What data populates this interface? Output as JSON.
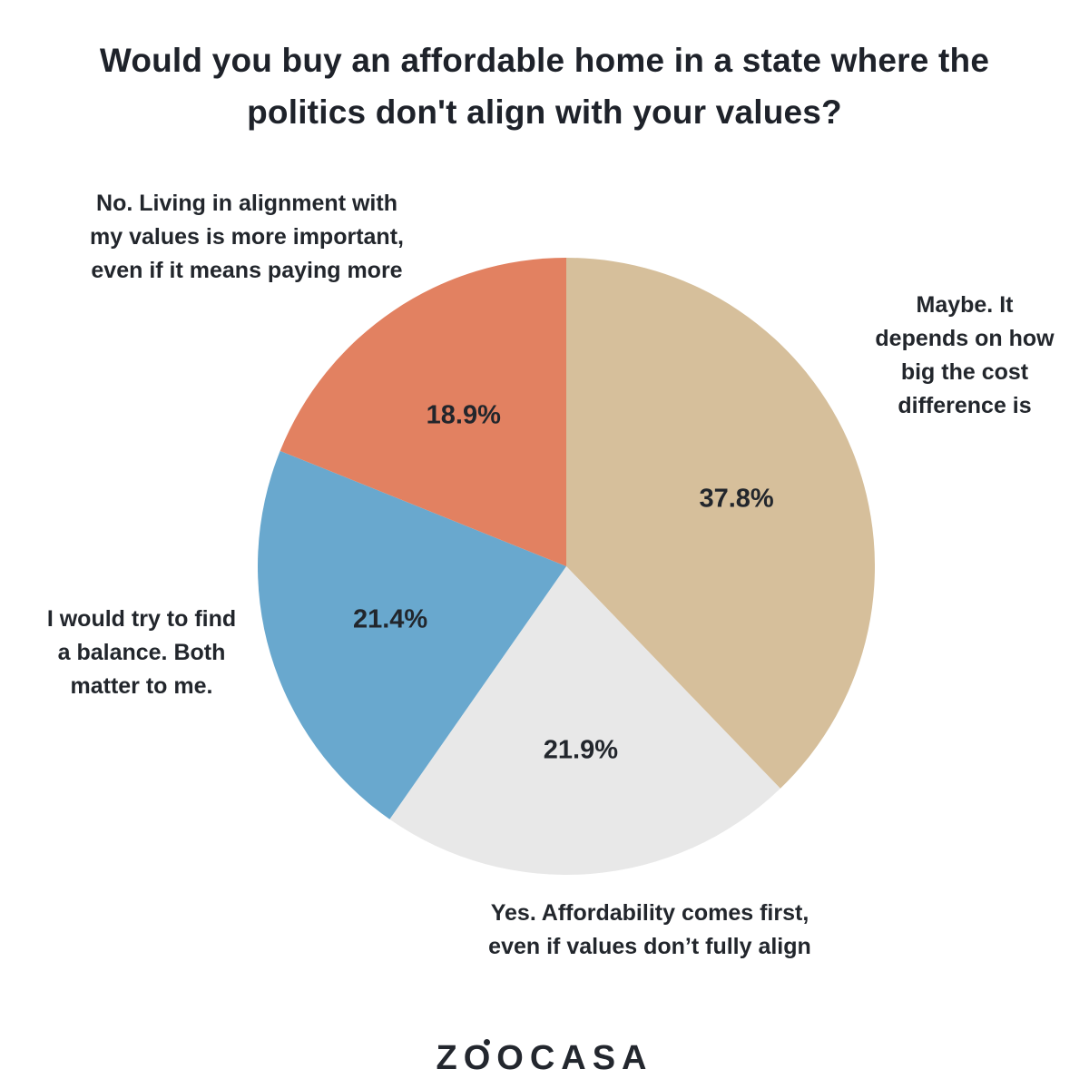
{
  "page": {
    "background": "#FFFFFF",
    "text_color": "#22262C",
    "title_color": "#1E222A"
  },
  "title": "Would you buy an affordable home in a state where the\npolitics don't align with your values?",
  "chart_data": {
    "type": "pie",
    "title": "Would you buy an affordable home in a state where the politics don't align with your values?",
    "start_angle_deg": 0,
    "direction": "clockwise",
    "labels_position": "outside",
    "slices": [
      {
        "label": "Maybe. It depends on how big the cost difference is",
        "value": 37.8,
        "display_value": "37.8%",
        "color": "#D6BF9B"
      },
      {
        "label": "Yes. Affordability comes first, even if values don’t fully align",
        "value": 21.9,
        "display_value": "21.9%",
        "color": "#E8E8E8"
      },
      {
        "label": "I would try to find a balance. Both matter to me.",
        "value": 21.4,
        "display_value": "21.4%",
        "color": "#69A8CE"
      },
      {
        "label": "No. Living in alignment with my values is more important, even if it means paying more",
        "value": 18.9,
        "display_value": "18.9%",
        "color": "#E28161"
      }
    ],
    "value_label_radius_fraction": 0.595
  },
  "callouts": {
    "no": "No. Living in alignment with\nmy values is more important,\neven if it means paying more",
    "maybe": "Maybe. It\ndepends on how\nbig the cost\ndifference is",
    "balance": "I would try to find\na balance. Both\nmatter to me.",
    "yes": "Yes. Affordability comes first,\neven if values don’t fully align"
  },
  "footer": {
    "brand": "ZOOCASA",
    "brand_part1": "ZO",
    "brand_part2": "OCASA"
  }
}
